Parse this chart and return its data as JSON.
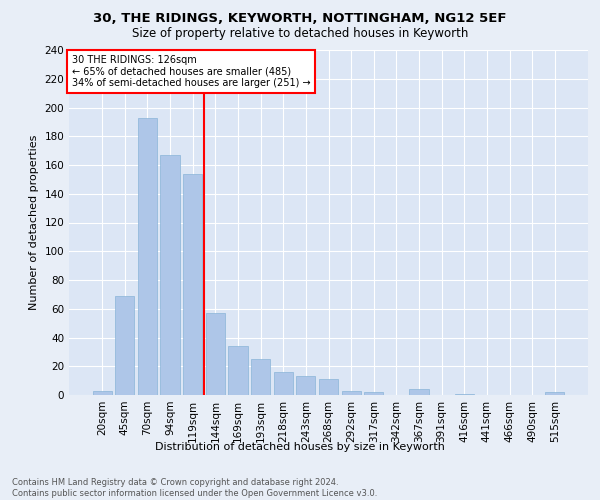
{
  "title1": "30, THE RIDINGS, KEYWORTH, NOTTINGHAM, NG12 5EF",
  "title2": "Size of property relative to detached houses in Keyworth",
  "xlabel": "Distribution of detached houses by size in Keyworth",
  "ylabel": "Number of detached properties",
  "categories": [
    "20sqm",
    "45sqm",
    "70sqm",
    "94sqm",
    "119sqm",
    "144sqm",
    "169sqm",
    "193sqm",
    "218sqm",
    "243sqm",
    "268sqm",
    "292sqm",
    "317sqm",
    "342sqm",
    "367sqm",
    "391sqm",
    "416sqm",
    "441sqm",
    "466sqm",
    "490sqm",
    "515sqm"
  ],
  "values": [
    3,
    69,
    193,
    167,
    154,
    57,
    34,
    25,
    16,
    13,
    11,
    3,
    2,
    0,
    4,
    0,
    1,
    0,
    0,
    0,
    2
  ],
  "bar_color": "#aec6e8",
  "bar_edge_color": "#8ab4d8",
  "vline_color": "red",
  "annotation_line1": "30 THE RIDINGS: 126sqm",
  "annotation_line2": "← 65% of detached houses are smaller (485)",
  "annotation_line3": "34% of semi-detached houses are larger (251) →",
  "annotation_box_color": "red",
  "ylim": [
    0,
    240
  ],
  "yticks": [
    0,
    20,
    40,
    60,
    80,
    100,
    120,
    140,
    160,
    180,
    200,
    220,
    240
  ],
  "footer1": "Contains HM Land Registry data © Crown copyright and database right 2024.",
  "footer2": "Contains public sector information licensed under the Open Government Licence v3.0.",
  "bg_color": "#e8eef7",
  "plot_bg_color": "#dce6f5"
}
